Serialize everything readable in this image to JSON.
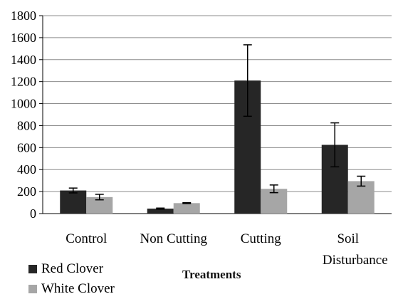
{
  "chart_data": {
    "type": "bar",
    "title": "",
    "xlabel": "Treatments",
    "ylabel": "",
    "ylim": [
      0,
      1800
    ],
    "yticks": [
      0,
      200,
      400,
      600,
      800,
      1000,
      1200,
      1400,
      1600,
      1800
    ],
    "grid": true,
    "legend_position": "bottom-left",
    "categories": [
      "Control",
      "Non Cutting",
      "Cutting",
      "Soil Disturbance"
    ],
    "category_lines": [
      [
        "Control"
      ],
      [
        "Non Cutting"
      ],
      [
        "Cutting"
      ],
      [
        "Soil",
        "Disturbance"
      ]
    ],
    "series": [
      {
        "name": "Red Clover",
        "color": "#262626",
        "values": [
          210,
          45,
          1210,
          625
        ],
        "errors": [
          22,
          5,
          325,
          200
        ]
      },
      {
        "name": "White Clover",
        "color": "#a6a6a6",
        "values": [
          150,
          95,
          225,
          295
        ],
        "errors": [
          25,
          4,
          35,
          45
        ]
      }
    ]
  }
}
